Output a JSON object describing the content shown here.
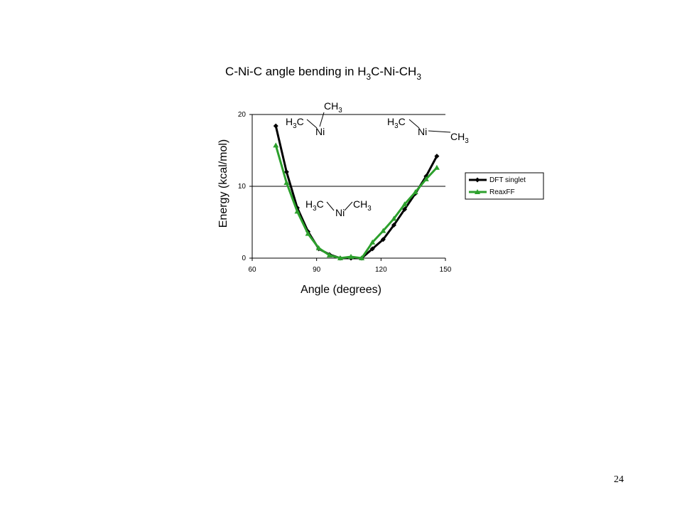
{
  "chart_data": {
    "type": "line",
    "title": "C-Ni-C angle bending in H3C-Ni-CH3",
    "x_label": "Angle (degrees)",
    "y_label": "Energy (kcal/mol)",
    "x": [
      71,
      76,
      81,
      86,
      91,
      96,
      101,
      106,
      111,
      116,
      121,
      126,
      131,
      136,
      141,
      146
    ],
    "series": [
      {
        "name": "DFT singlet",
        "color": "#000000",
        "marker": "diamond",
        "values": [
          18.4,
          12.0,
          7.0,
          3.7,
          1.3,
          0.5,
          0,
          0,
          0,
          1.3,
          2.6,
          4.6,
          6.8,
          9.0,
          11.4,
          14.2
        ]
      },
      {
        "name": "ReaxFF",
        "color": "#2ca02c",
        "marker": "triangle",
        "values": [
          15.7,
          10.5,
          6.5,
          3.4,
          1.4,
          0.4,
          0,
          0.2,
          0,
          2.2,
          3.8,
          5.5,
          7.5,
          9.2,
          11.0,
          12.6
        ]
      }
    ],
    "xlim": [
      60,
      150
    ],
    "xticks": [
      60,
      90,
      120,
      150
    ],
    "ylim": [
      0,
      20
    ],
    "yticks": [
      0,
      10,
      20
    ],
    "grid": true,
    "legend": "right",
    "annotations": [
      {
        "left": "H3C",
        "center": "Ni",
        "right": "CH3"
      },
      {
        "left": "H3C",
        "center": "Ni",
        "right": "CH3"
      },
      {
        "left": "H3C",
        "center": "Ni",
        "right": "CH3"
      }
    ]
  },
  "page_number": "24"
}
